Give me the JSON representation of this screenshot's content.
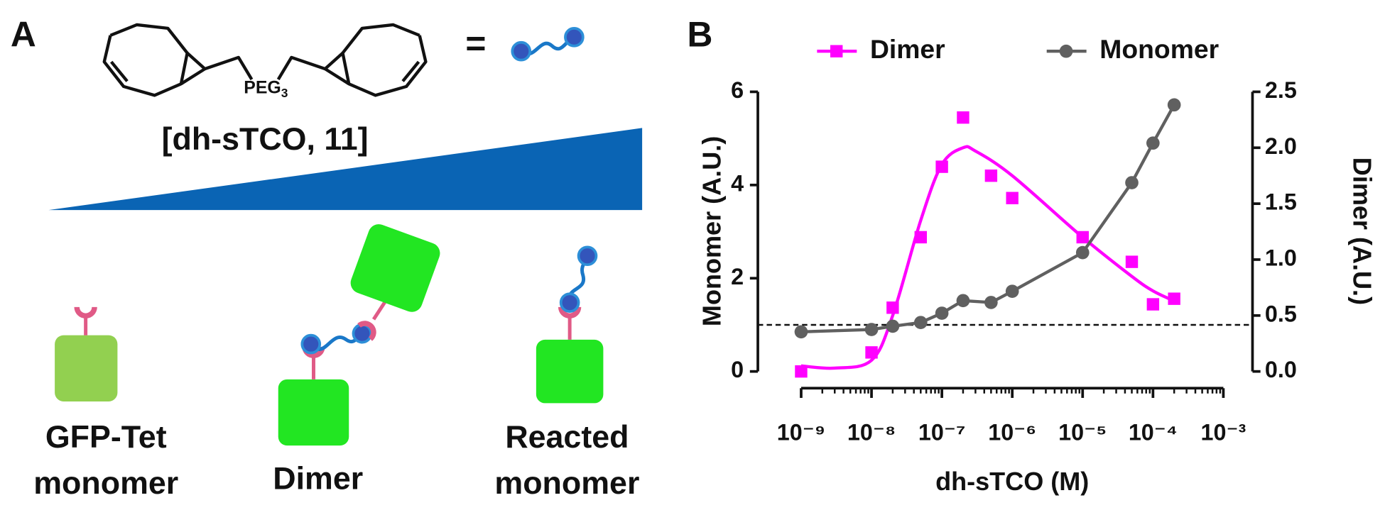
{
  "panel_a": {
    "label": "A",
    "molecule": {
      "linker": "PEG",
      "linker_subscript": "3",
      "equals": "="
    },
    "concentration_label": "[dh-sTCO, 11]",
    "states": [
      {
        "lines": [
          "GFP-Tet",
          "monomer"
        ]
      },
      {
        "lines": [
          "Dimer"
        ]
      },
      {
        "lines": [
          "Reacted",
          "monomer"
        ]
      }
    ]
  },
  "panel_b": {
    "label": "B"
  },
  "chart_data": {
    "type": "line",
    "x_label": "dh-sTCO (M)",
    "y_label": "Monomer (A.U.)",
    "y2_label": "Dimer (A.U.)",
    "xscale": "log",
    "xlim": [
      1e-09,
      0.001
    ],
    "xticks": [
      {
        "value": 1e-09,
        "label": "10⁻⁹"
      },
      {
        "value": 1e-08,
        "label": "10⁻⁸"
      },
      {
        "value": 1e-07,
        "label": "10⁻⁷"
      },
      {
        "value": 1e-06,
        "label": "10⁻⁶"
      },
      {
        "value": 1e-05,
        "label": "10⁻⁵"
      },
      {
        "value": 0.0001,
        "label": "10⁻⁴"
      },
      {
        "value": 0.001,
        "label": "10⁻³"
      }
    ],
    "ylim": [
      0,
      6
    ],
    "yticks": [
      0,
      2,
      4,
      6
    ],
    "y2lim": [
      0,
      2.5
    ],
    "y2ticks": [
      {
        "value": 0,
        "label": "0.0"
      },
      0.5,
      {
        "value": 1,
        "label": "1.0"
      },
      1.5,
      {
        "value": 2,
        "label": "2.0"
      },
      2.5
    ],
    "hline": {
      "value": 1,
      "axis": "y",
      "style": "dashed",
      "color": "#111111"
    },
    "legend_position": "top",
    "series": [
      {
        "name": "Dimer",
        "color": "#ff00ff",
        "marker": "square",
        "axis": "y2",
        "x": [
          1e-09,
          1e-08,
          2e-08,
          5e-08,
          1e-07,
          2e-07,
          5e-07,
          1e-06,
          1e-05,
          5e-05,
          0.0001,
          0.0002
        ],
        "values": [
          0.0,
          0.17,
          0.57,
          1.2,
          1.83,
          2.27,
          1.75,
          1.55,
          1.2,
          0.98,
          0.6,
          0.65
        ],
        "fit": {
          "x": [
            1e-09,
            3e-09,
            1e-08,
            2e-08,
            5e-08,
            1e-07,
            2e-07,
            3e-07,
            1e-06,
            1e-05,
            5e-05,
            0.0001,
            0.0002
          ],
          "values": [
            0.05,
            0.03,
            0.1,
            0.5,
            1.35,
            1.85,
            2.0,
            1.97,
            1.75,
            1.2,
            0.85,
            0.72,
            0.63
          ]
        }
      },
      {
        "name": "Monomer",
        "color": "#606060",
        "marker": "circle",
        "axis": "y",
        "x": [
          1e-09,
          1e-08,
          2e-08,
          5e-08,
          1e-07,
          2e-07,
          5e-07,
          1e-06,
          1e-05,
          5e-05,
          0.0001,
          0.0002
        ],
        "values": [
          0.85,
          0.9,
          0.97,
          1.05,
          1.25,
          1.52,
          1.48,
          1.72,
          2.55,
          4.05,
          4.9,
          5.72
        ]
      }
    ]
  }
}
